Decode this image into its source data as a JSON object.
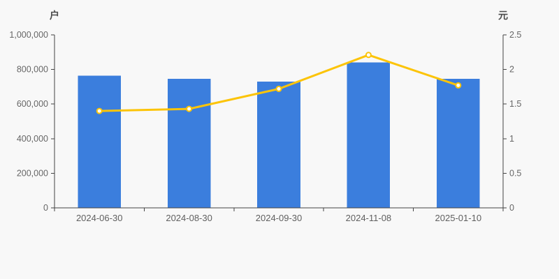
{
  "chart_data": {
    "type": "bar",
    "title": "",
    "categories": [
      "2024-06-30",
      "2024-08-30",
      "2024-09-30",
      "2024-11-08",
      "2025-01-10"
    ],
    "series": [
      {
        "name": "户",
        "type": "bar",
        "yaxis": "left",
        "color": "#3b7edd",
        "values": [
          765000,
          745000,
          730000,
          840000,
          745000
        ]
      },
      {
        "name": "元",
        "type": "line",
        "yaxis": "right",
        "color": "#fcc408",
        "marker_fill": "#ffffff",
        "values": [
          1.4,
          1.43,
          1.72,
          2.21,
          1.77
        ]
      }
    ],
    "left_axis": {
      "unit": "户",
      "min": 0,
      "max": 1000000,
      "ticks": [
        0,
        200000,
        400000,
        600000,
        800000,
        1000000
      ],
      "tick_labels": [
        "0",
        "200,000",
        "400,000",
        "600,000",
        "800,000",
        "1,000,000"
      ]
    },
    "right_axis": {
      "unit": "元",
      "min": 0,
      "max": 2.5,
      "ticks": [
        0,
        0.5,
        1,
        1.5,
        2,
        2.5
      ],
      "tick_labels": [
        "0",
        "0.5",
        "1",
        "1.5",
        "2",
        "2.5"
      ]
    },
    "grid": false,
    "legend_position": "none"
  },
  "style": {
    "background": "#f8f8f8",
    "axis_line_color": "#444444",
    "tick_label_color": "#666666",
    "category_label_color": "#5f5f5f",
    "unit_label_color": "#4a4a4a"
  }
}
